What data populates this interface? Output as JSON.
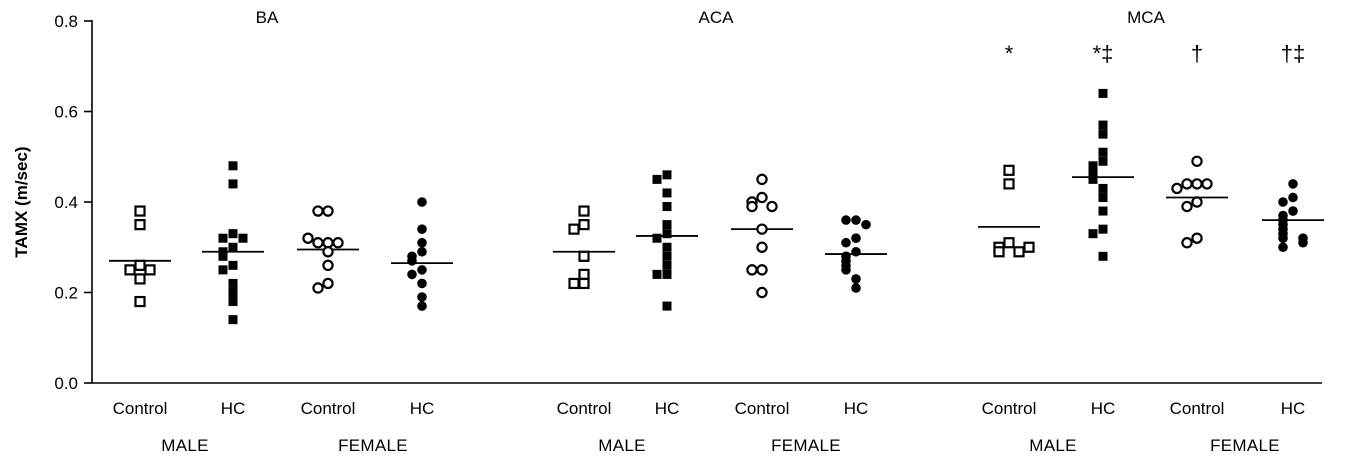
{
  "chart_data": {
    "type": "scatter",
    "ylabel": "TAMX (m/sec)",
    "ylim": [
      0.0,
      0.8
    ],
    "yticks": [
      0.0,
      0.2,
      0.4,
      0.6,
      0.8
    ],
    "ytick_labels": [
      "0.0",
      "0.2",
      "0.4",
      "0.6",
      "0.8"
    ],
    "panels": [
      {
        "title": "BA",
        "sex_labels": [
          "MALE",
          "FEMALE"
        ],
        "groups": [
          {
            "label": "Control",
            "sex": "MALE",
            "marker": "open-square",
            "mean": 0.27,
            "values": [
              0.38,
              0.35,
              0.26,
              0.25,
              0.25,
              0.23,
              0.18
            ]
          },
          {
            "label": "HC",
            "sex": "MALE",
            "marker": "filled-square",
            "mean": 0.29,
            "values": [
              0.48,
              0.44,
              0.33,
              0.32,
              0.32,
              0.3,
              0.29,
              0.28,
              0.26,
              0.25,
              0.22,
              0.2,
              0.18,
              0.14
            ]
          },
          {
            "label": "Control",
            "sex": "FEMALE",
            "marker": "open-circle",
            "mean": 0.295,
            "values": [
              0.38,
              0.38,
              0.31,
              0.31,
              0.31,
              0.32,
              0.29,
              0.26,
              0.22,
              0.21
            ]
          },
          {
            "label": "HC",
            "sex": "FEMALE",
            "marker": "filled-circle",
            "mean": 0.265,
            "values": [
              0.4,
              0.34,
              0.31,
              0.29,
              0.28,
              0.27,
              0.25,
              0.24,
              0.22,
              0.19,
              0.17
            ]
          }
        ]
      },
      {
        "title": "ACA",
        "sex_labels": [
          "MALE",
          "FEMALE"
        ],
        "groups": [
          {
            "label": "Control",
            "sex": "MALE",
            "marker": "open-square",
            "mean": 0.29,
            "values": [
              0.38,
              0.35,
              0.34,
              0.28,
              0.24,
              0.22,
              0.22
            ]
          },
          {
            "label": "HC",
            "sex": "MALE",
            "marker": "filled-square",
            "mean": 0.325,
            "values": [
              0.46,
              0.45,
              0.42,
              0.39,
              0.35,
              0.33,
              0.32,
              0.3,
              0.28,
              0.26,
              0.24,
              0.24,
              0.17
            ]
          },
          {
            "label": "Control",
            "sex": "FEMALE",
            "marker": "open-circle",
            "mean": 0.34,
            "values": [
              0.45,
              0.41,
              0.4,
              0.39,
              0.39,
              0.34,
              0.3,
              0.25,
              0.25,
              0.2
            ]
          },
          {
            "label": "HC",
            "sex": "FEMALE",
            "marker": "filled-circle",
            "mean": 0.285,
            "values": [
              0.36,
              0.36,
              0.35,
              0.32,
              0.31,
              0.29,
              0.28,
              0.27,
              0.26,
              0.25,
              0.23,
              0.21
            ]
          }
        ]
      },
      {
        "title": "MCA",
        "sex_labels": [
          "MALE",
          "FEMALE"
        ],
        "groups": [
          {
            "label": "Control",
            "sex": "MALE",
            "marker": "open-square",
            "mean": 0.345,
            "annotation": "*",
            "values": [
              0.47,
              0.44,
              0.31,
              0.3,
              0.29,
              0.29,
              0.3
            ]
          },
          {
            "label": "HC",
            "sex": "MALE",
            "marker": "filled-square",
            "mean": 0.455,
            "annotation": "*‡",
            "values": [
              0.64,
              0.57,
              0.55,
              0.51,
              0.49,
              0.48,
              0.47,
              0.46,
              0.45,
              0.43,
              0.41,
              0.38,
              0.34,
              0.33,
              0.28
            ]
          },
          {
            "label": "Control",
            "sex": "FEMALE",
            "marker": "open-circle",
            "mean": 0.41,
            "annotation": "†",
            "values": [
              0.49,
              0.44,
              0.44,
              0.44,
              0.43,
              0.4,
              0.39,
              0.32,
              0.31
            ]
          },
          {
            "label": "HC",
            "sex": "FEMALE",
            "marker": "filled-circle",
            "mean": 0.36,
            "annotation": "†‡",
            "values": [
              0.44,
              0.41,
              0.4,
              0.38,
              0.37,
              0.36,
              0.35,
              0.34,
              0.33,
              0.32,
              0.32,
              0.31,
              0.3
            ]
          }
        ]
      }
    ]
  }
}
